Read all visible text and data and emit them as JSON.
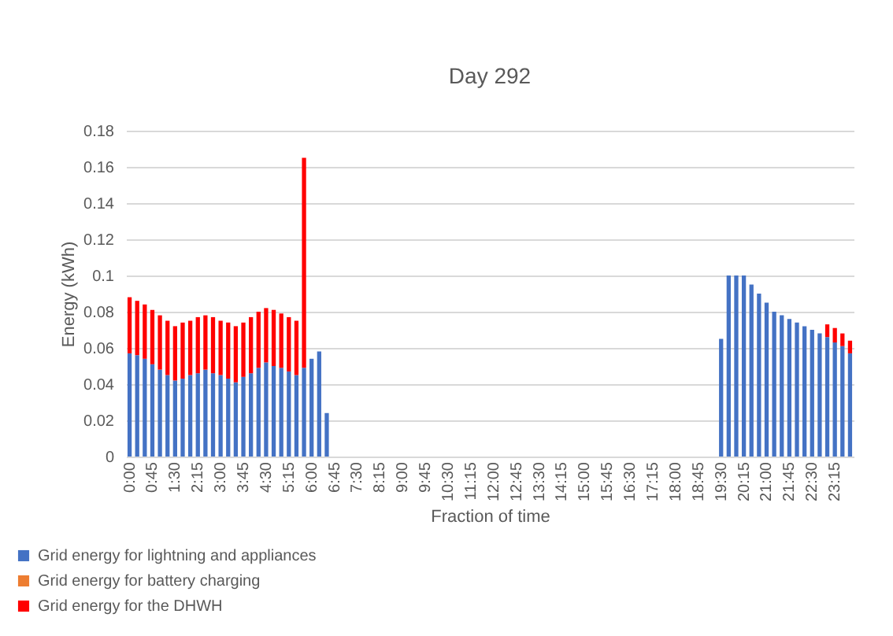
{
  "chart_data": {
    "type": "bar",
    "title": "Day 292",
    "xlabel": "Fraction of time",
    "ylabel": "Energy (kWh)",
    "categories": [
      "0:00",
      null,
      null,
      "0:45",
      null,
      null,
      "1:30",
      null,
      null,
      "2:15",
      null,
      null,
      "3:00",
      null,
      null,
      "3:45",
      null,
      null,
      "4:30",
      null,
      null,
      "5:15",
      null,
      null,
      "6:00",
      null,
      null,
      "6:45",
      null,
      null,
      "7:30",
      null,
      null,
      "8:15",
      null,
      null,
      "9:00",
      null,
      null,
      "9:45",
      null,
      null,
      "10:30",
      null,
      null,
      "11:15",
      null,
      null,
      "12:00",
      null,
      null,
      "12:45",
      null,
      null,
      "13:30",
      null,
      null,
      "14:15",
      null,
      null,
      "15:00",
      null,
      null,
      "15:45",
      null,
      null,
      "16:30",
      null,
      null,
      "17:15",
      null,
      null,
      "18:00",
      null,
      null,
      "18:45",
      null,
      null,
      "19:30",
      null,
      null,
      "20:15",
      null,
      null,
      "21:00",
      null,
      null,
      "21:45",
      null,
      null,
      "22:30",
      null,
      null,
      "23:15",
      null,
      null
    ],
    "stacked": true,
    "series": [
      {
        "name": "Grid energy for lightning and appliances",
        "color": "#4472c4",
        "values": [
          0.057,
          0.056,
          0.054,
          0.051,
          0.048,
          0.045,
          0.042,
          0.043,
          0.045,
          0.046,
          0.048,
          0.046,
          0.045,
          0.043,
          0.041,
          0.044,
          0.046,
          0.049,
          0.052,
          0.05,
          0.049,
          0.047,
          0.045,
          0.049,
          0.054,
          0.058,
          0.024,
          null,
          null,
          null,
          null,
          null,
          null,
          null,
          null,
          null,
          null,
          null,
          null,
          null,
          null,
          null,
          null,
          null,
          null,
          null,
          null,
          null,
          null,
          null,
          null,
          null,
          null,
          null,
          null,
          null,
          null,
          null,
          null,
          null,
          null,
          null,
          null,
          null,
          null,
          null,
          null,
          null,
          null,
          null,
          null,
          null,
          null,
          null,
          null,
          null,
          null,
          null,
          0.065,
          0.1,
          0.1,
          0.1,
          0.095,
          0.09,
          0.085,
          0.08,
          0.078,
          0.076,
          0.074,
          0.072,
          0.07,
          0.068,
          0.066,
          0.063,
          0.061,
          0.057
        ]
      },
      {
        "name": "Grid energy for battery charging",
        "color": "#ed7d31",
        "values": [
          null,
          null,
          null,
          null,
          null,
          null,
          null,
          null,
          null,
          null,
          null,
          null,
          null,
          null,
          null,
          null,
          null,
          null,
          null,
          null,
          null,
          null,
          null,
          null,
          null,
          null,
          null,
          null,
          null,
          null,
          null,
          null,
          null,
          null,
          null,
          null,
          null,
          null,
          null,
          null,
          null,
          null,
          null,
          null,
          null,
          null,
          null,
          null,
          null,
          null,
          null,
          null,
          null,
          null,
          null,
          null,
          null,
          null,
          null,
          null,
          null,
          null,
          null,
          null,
          null,
          null,
          null,
          null,
          null,
          null,
          null,
          null,
          null,
          null,
          null,
          null,
          null,
          null,
          null,
          null,
          null,
          null,
          null,
          null,
          null,
          null,
          null,
          null,
          null,
          null,
          null,
          null,
          null,
          null,
          null,
          null
        ]
      },
      {
        "name": "Grid energy for the DHWH",
        "color": "#ff0000",
        "values": [
          0.031,
          0.03,
          0.03,
          0.03,
          0.03,
          0.03,
          0.03,
          0.031,
          0.03,
          0.031,
          0.03,
          0.031,
          0.03,
          0.031,
          0.031,
          0.03,
          0.031,
          0.031,
          0.03,
          0.031,
          0.03,
          0.03,
          0.03,
          0.116,
          null,
          null,
          null,
          null,
          null,
          null,
          null,
          null,
          null,
          null,
          null,
          null,
          null,
          null,
          null,
          null,
          null,
          null,
          null,
          null,
          null,
          null,
          null,
          null,
          null,
          null,
          null,
          null,
          null,
          null,
          null,
          null,
          null,
          null,
          null,
          null,
          null,
          null,
          null,
          null,
          null,
          null,
          null,
          null,
          null,
          null,
          null,
          null,
          null,
          null,
          null,
          null,
          null,
          null,
          null,
          null,
          null,
          null,
          null,
          null,
          null,
          null,
          null,
          null,
          null,
          null,
          null,
          null,
          0.007,
          0.008,
          0.007,
          0.007
        ]
      }
    ],
    "ylim": [
      0,
      0.18
    ],
    "yticks": [
      0,
      0.02,
      0.04,
      0.06,
      0.08,
      0.1,
      0.12,
      0.14,
      0.16,
      0.18
    ],
    "grid": "y",
    "legend": "bottom left"
  }
}
